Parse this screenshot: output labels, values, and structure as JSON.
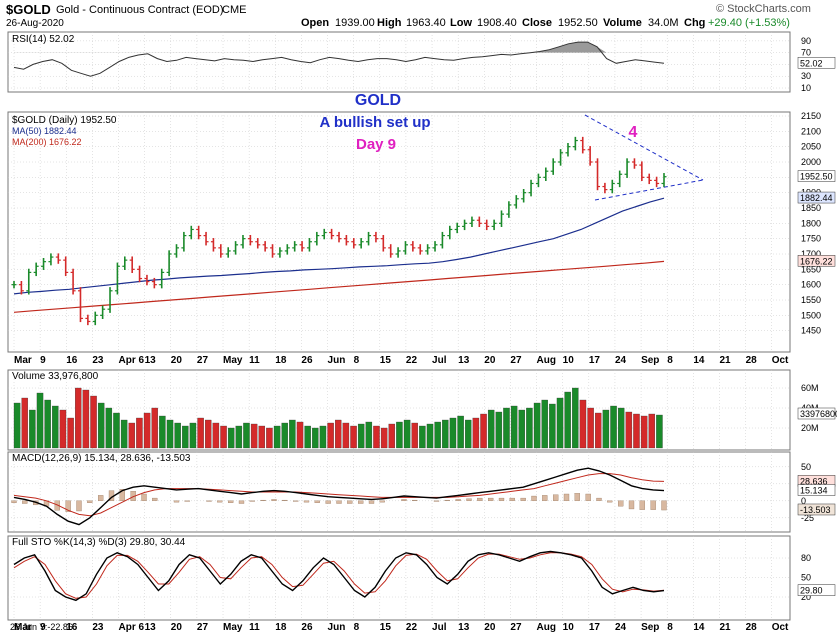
{
  "header": {
    "symbol": "$GOLD",
    "name": "Gold - Continuous Contract (EOD)",
    "exchange": "CME",
    "date": "26-Aug-2020",
    "open_label": "Open",
    "open": "1939.00",
    "high_label": "High",
    "high": "1963.40",
    "low_label": "Low",
    "low": "1908.40",
    "close_label": "Close",
    "close": "1952.50",
    "volume_label": "Volume",
    "volume": "34.0M",
    "chg_label": "Chg",
    "chg": "+29.40 (+1.53%)",
    "brand": "© StockCharts.com"
  },
  "annotations": {
    "title": "GOLD",
    "subtitle": "A bullish set up",
    "day": "Day 9",
    "wave": "4"
  },
  "footer": {
    "corner": "26 Jun Y:-22.86"
  },
  "colors": {
    "up": "#1a8a2a",
    "down": "#d42a2a",
    "ma50": "#1c2f8e",
    "ma200": "#c0281c",
    "annotation_blue": "#2030c8",
    "annotation_magenta": "#e020c0",
    "grid": "#c8c8c8"
  },
  "chart_data": [
    {
      "type": "line",
      "title": "RSI(14) 52.02",
      "series": [
        {
          "name": "RSI(14)",
          "value": "52.02"
        }
      ],
      "ylim": [
        10,
        100
      ],
      "y_ticks": [
        "90",
        "70",
        "50",
        "30",
        "10"
      ],
      "current_label": "52.02",
      "values": [
        45,
        42,
        50,
        55,
        58,
        52,
        40,
        35,
        30,
        35,
        45,
        55,
        62,
        66,
        68,
        60,
        55,
        57,
        62,
        60,
        58,
        56,
        60,
        58,
        57,
        55,
        58,
        60,
        62,
        58,
        55,
        53,
        58,
        62,
        60,
        57,
        55,
        58,
        60,
        60,
        58,
        55,
        58,
        62,
        60,
        58,
        57,
        60,
        62,
        63,
        65,
        67,
        66,
        68,
        70,
        72,
        75,
        80,
        85,
        88,
        88,
        80,
        60,
        52,
        55,
        58,
        56,
        54,
        52
      ]
    },
    {
      "type": "candlestick",
      "title": "$GOLD (Daily) 1952.50",
      "series": [
        {
          "name": "MA(50)",
          "label": "MA(50) 1882.44",
          "values": [
            1570,
            1575,
            1578,
            1582,
            1585,
            1590,
            1595,
            1600,
            1605,
            1610,
            1615,
            1618,
            1622,
            1625,
            1628,
            1630,
            1633,
            1636,
            1640,
            1643,
            1645,
            1648,
            1650,
            1652,
            1655,
            1658,
            1660,
            1662,
            1665,
            1668,
            1670,
            1675,
            1682,
            1690,
            1700,
            1710,
            1720,
            1730,
            1740,
            1750,
            1765,
            1780,
            1800,
            1820,
            1840,
            1855,
            1870,
            1882
          ]
        },
        {
          "name": "MA(200)",
          "label": "MA(200) 1676.22",
          "values": [
            1510,
            1515,
            1520,
            1525,
            1530,
            1535,
            1540,
            1545,
            1550,
            1555,
            1560,
            1565,
            1570,
            1575,
            1580,
            1585,
            1590,
            1595,
            1600,
            1605,
            1610,
            1615,
            1620,
            1625,
            1630,
            1635,
            1640,
            1645,
            1650,
            1655,
            1660,
            1665,
            1670,
            1676
          ]
        }
      ],
      "ylim": [
        1400,
        2150
      ],
      "y_ticks": [
        "2150",
        "2100",
        "2050",
        "2000",
        "1950",
        "1900",
        "1850",
        "1800",
        "1750",
        "1700",
        "1650",
        "1600",
        "1550",
        "1500",
        "1450"
      ],
      "current_labels": [
        "1952.50",
        "1882.44",
        "1676.22"
      ],
      "closes": [
        1600,
        1580,
        1640,
        1660,
        1675,
        1690,
        1680,
        1640,
        1580,
        1490,
        1480,
        1500,
        1520,
        1580,
        1660,
        1680,
        1650,
        1620,
        1610,
        1600,
        1640,
        1700,
        1720,
        1760,
        1780,
        1760,
        1740,
        1720,
        1700,
        1710,
        1730,
        1750,
        1740,
        1730,
        1720,
        1700,
        1710,
        1720,
        1730,
        1720,
        1740,
        1760,
        1770,
        1760,
        1750,
        1740,
        1730,
        1740,
        1760,
        1750,
        1720,
        1700,
        1710,
        1730,
        1720,
        1710,
        1720,
        1730,
        1760,
        1780,
        1790,
        1800,
        1810,
        1800,
        1790,
        1800,
        1830,
        1860,
        1880,
        1900,
        1930,
        1950,
        1970,
        2000,
        2030,
        2050,
        2070,
        2040,
        2000,
        1920,
        1910,
        1930,
        1960,
        2000,
        1990,
        1950,
        1940,
        1930,
        1952
      ]
    },
    {
      "type": "bar",
      "title": "Volume 33,976,800",
      "y_ticks": [
        "60M",
        "40M",
        "20M"
      ],
      "current_label": "33976800",
      "values": [
        45,
        50,
        38,
        55,
        48,
        42,
        38,
        30,
        60,
        58,
        52,
        45,
        40,
        35,
        28,
        25,
        30,
        35,
        40,
        32,
        28,
        25,
        22,
        25,
        30,
        28,
        25,
        22,
        20,
        22,
        25,
        24,
        22,
        20,
        22,
        25,
        28,
        26,
        22,
        20,
        22,
        25,
        28,
        25,
        22,
        24,
        26,
        22,
        20,
        24,
        26,
        28,
        25,
        22,
        24,
        26,
        28,
        30,
        32,
        28,
        30,
        34,
        38,
        36,
        40,
        42,
        38,
        40,
        45,
        48,
        44,
        50,
        56,
        60,
        48,
        40,
        35,
        38,
        42,
        40,
        36,
        34,
        32,
        34,
        33
      ]
    },
    {
      "type": "line",
      "title": "MACD(12,26,9) 15.134, 28.636, -13.503",
      "series": [
        {
          "name": "MACD",
          "value": "15.134"
        },
        {
          "name": "Signal",
          "value": "28.636"
        },
        {
          "name": "Histogram",
          "value": "-13.503"
        }
      ],
      "y_ticks": [
        "50",
        "25",
        "0",
        "-25"
      ],
      "current_labels": [
        "28.636",
        "15.134",
        "-13.503"
      ],
      "macd": [
        5,
        2,
        -2,
        -8,
        -20,
        -30,
        -35,
        -25,
        -10,
        5,
        15,
        20,
        22,
        20,
        18,
        16,
        17,
        18,
        16,
        14,
        12,
        10,
        12,
        14,
        15,
        14,
        12,
        10,
        8,
        6,
        5,
        4,
        3,
        2,
        3,
        5,
        7,
        6,
        5,
        4,
        6,
        8,
        10,
        12,
        14,
        16,
        18,
        20,
        25,
        30,
        35,
        40,
        45,
        48,
        44,
        38,
        30,
        22,
        18,
        16,
        15
      ],
      "signal": [
        8,
        6,
        4,
        0,
        -6,
        -14,
        -20,
        -22,
        -18,
        -10,
        -2,
        6,
        12,
        16,
        18,
        18,
        18,
        18,
        17,
        16,
        15,
        14,
        13,
        13,
        13,
        13,
        13,
        12,
        11,
        10,
        9,
        8,
        7,
        6,
        5,
        5,
        5,
        5,
        5,
        5,
        5,
        6,
        7,
        8,
        10,
        12,
        14,
        16,
        18,
        22,
        26,
        30,
        34,
        38,
        40,
        40,
        38,
        34,
        31,
        29,
        28.6
      ]
    },
    {
      "type": "line",
      "title": "Full STO %K(14,3) %D(3) 29.80, 30.44",
      "series": [
        {
          "name": "%K(14,3)",
          "value": "29.80"
        },
        {
          "name": "%D(3)",
          "value": "30.44"
        }
      ],
      "ylim": [
        0,
        100
      ],
      "y_ticks": [
        "80",
        "50",
        "20"
      ],
      "current_label": "29.80",
      "k": [
        70,
        80,
        85,
        60,
        30,
        20,
        15,
        25,
        55,
        80,
        88,
        82,
        70,
        50,
        30,
        45,
        70,
        85,
        80,
        60,
        40,
        55,
        75,
        85,
        80,
        60,
        40,
        30,
        45,
        65,
        80,
        70,
        50,
        30,
        20,
        35,
        60,
        80,
        88,
        85,
        70,
        50,
        40,
        55,
        75,
        85,
        88,
        85,
        80,
        75,
        82,
        88,
        90,
        88,
        85,
        80,
        60,
        35,
        25,
        30,
        35,
        30,
        28,
        29.8
      ],
      "d": [
        65,
        75,
        82,
        70,
        45,
        25,
        18,
        20,
        40,
        68,
        84,
        84,
        75,
        58,
        40,
        40,
        58,
        78,
        82,
        70,
        50,
        48,
        65,
        80,
        82,
        70,
        50,
        36,
        38,
        55,
        72,
        75,
        60,
        40,
        26,
        28,
        45,
        68,
        84,
        86,
        78,
        60,
        45,
        48,
        65,
        80,
        86,
        86,
        82,
        78,
        80,
        85,
        88,
        88,
        86,
        82,
        70,
        48,
        32,
        28,
        32,
        31,
        29,
        30.4
      ]
    }
  ],
  "x_axis": {
    "labels": [
      "Mar",
      "9",
      "16",
      "23",
      "Apr 6",
      "13",
      "20",
      "27",
      "May",
      "11",
      "18",
      "26",
      "Jun",
      "8",
      "15",
      "22",
      "Jul",
      "13",
      "20",
      "27",
      "Aug",
      "10",
      "17",
      "24",
      "Sep",
      "8",
      "14",
      "21",
      "28",
      "Oct"
    ]
  }
}
